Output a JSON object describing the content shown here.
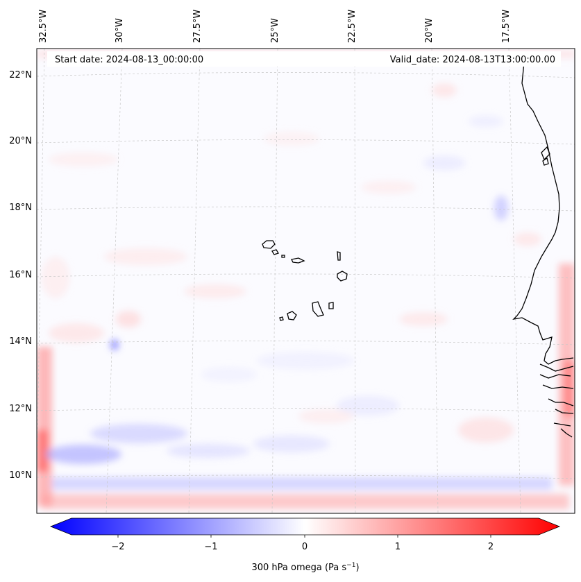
{
  "header": {
    "start_date": "Start date: 2024-08-13_00:00:00",
    "valid_date": "Valid_date: 2024-08-13T13:00:00.00"
  },
  "longitude_labels": [
    "32.5°W",
    "30°W",
    "27.5°W",
    "25°W",
    "22.5°W",
    "20°W",
    "17.5°W"
  ],
  "latitude_labels": [
    "22°N",
    "20°N",
    "18°N",
    "16°N",
    "14°N",
    "12°N",
    "10°N"
  ],
  "colorbar": {
    "label": "300 hPa omega (Pa s",
    "label_exp": "−1",
    "label_close": ")",
    "ticks": [
      "−2",
      "−1",
      "0",
      "1",
      "2"
    ],
    "min_value": -2.75,
    "max_value": 2.75,
    "colors": {
      "negative": "#0000ff",
      "zero": "#ffffff",
      "positive": "#ff0000"
    }
  },
  "map": {
    "field": "300 hPa omega",
    "colormap": "bwr",
    "coastline_color": "#000000",
    "gridline_color": "#bbbbbb"
  }
}
